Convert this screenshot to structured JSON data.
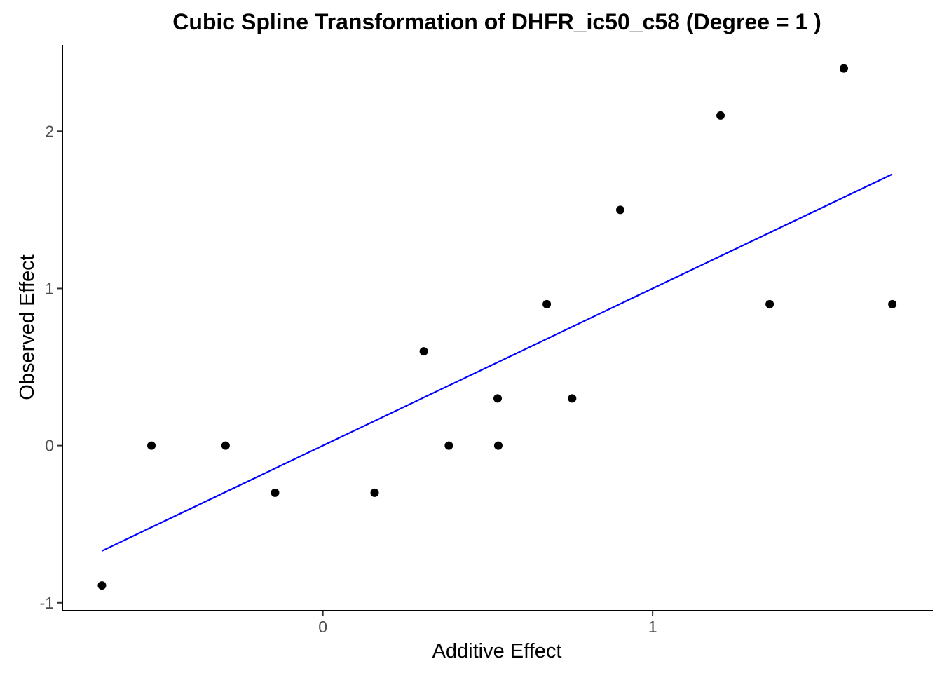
{
  "chart_data": {
    "type": "scatter",
    "title": "Cubic Spline Transformation of DHFR_ic50_c58 (Degree = 1 )",
    "xlabel": "Additive Effect",
    "ylabel": "Observed Effect",
    "xlim": [
      -0.79,
      1.85
    ],
    "ylim": [
      -1.05,
      2.55
    ],
    "x_ticks": [
      0,
      1
    ],
    "x_tick_labels": [
      "0",
      "1"
    ],
    "y_ticks": [
      -1,
      0,
      1,
      2
    ],
    "y_tick_labels": [
      "-1",
      "0",
      "1",
      "2"
    ],
    "grid": false,
    "legend": "none",
    "series": [
      {
        "type": "scatter",
        "color": "#000000",
        "points": [
          {
            "x": -0.67,
            "y": -0.89
          },
          {
            "x": -0.52,
            "y": 0.0
          },
          {
            "x": -0.295,
            "y": 0.0
          },
          {
            "x": -0.145,
            "y": -0.3
          },
          {
            "x": 0.157,
            "y": -0.3
          },
          {
            "x": 0.306,
            "y": 0.6
          },
          {
            "x": 0.382,
            "y": 0.0
          },
          {
            "x": 0.53,
            "y": 0.3
          },
          {
            "x": 0.532,
            "y": 0.0
          },
          {
            "x": 0.679,
            "y": 0.9
          },
          {
            "x": 0.756,
            "y": 0.3
          },
          {
            "x": 0.902,
            "y": 1.5
          },
          {
            "x": 1.206,
            "y": 2.1
          },
          {
            "x": 1.355,
            "y": 0.9
          },
          {
            "x": 1.58,
            "y": 2.4
          },
          {
            "x": 1.727,
            "y": 0.9
          }
        ]
      },
      {
        "type": "line",
        "color": "#0000ff",
        "points": [
          {
            "x": -0.67,
            "y": -0.67
          },
          {
            "x": 1.727,
            "y": 1.727
          }
        ]
      }
    ]
  }
}
